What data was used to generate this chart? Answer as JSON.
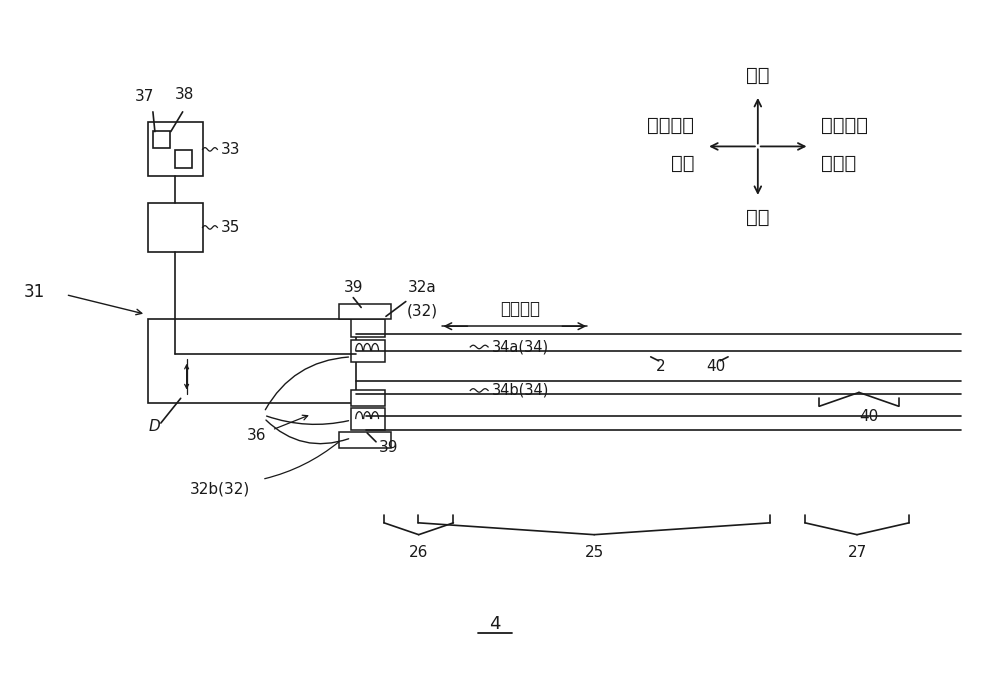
{
  "bg_color": "#ffffff",
  "line_color": "#1a1a1a",
  "fig_width": 10.0,
  "fig_height": 6.89,
  "compass_labels": {
    "up": "上侧",
    "down": "下侧",
    "left1": "宽度方向",
    "left2": "一侧",
    "right1": "宽度方向",
    "right2": "另一侧"
  },
  "scan_text": "扫描方向"
}
